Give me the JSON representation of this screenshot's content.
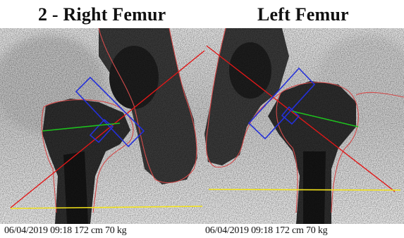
{
  "panels": [
    {
      "title": "2 - Right Femur",
      "footer": "06/04/2019 09:18 172 cm   70 kg"
    },
    {
      "title": "Left Femur",
      "footer": "06/04/2019 09:18 172 cm   70 kg"
    }
  ],
  "overlay_colors": {
    "outline": "#d24a4a",
    "axis_line": "#e01818",
    "roi_box": "#2430d8",
    "neck_axis": "#1ec01e",
    "baseline": "#f2e21a"
  }
}
